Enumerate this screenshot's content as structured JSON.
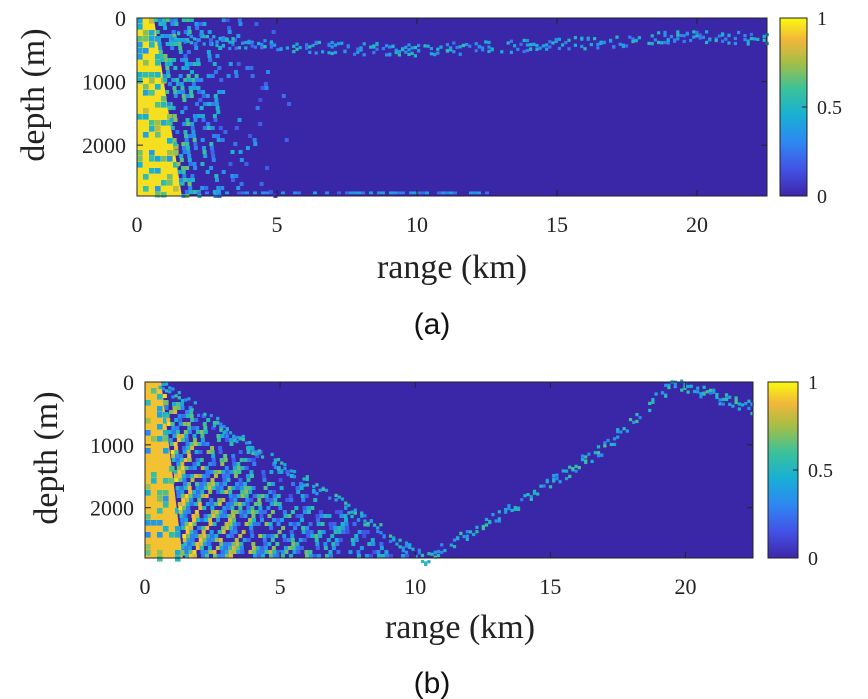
{
  "chart_data": [
    {
      "type": "heatmap",
      "panel_label": "(a)",
      "xlabel": "range (km)",
      "ylabel": "depth (m)",
      "xlim": [
        0,
        22.5
      ],
      "ylim": [
        2800,
        0
      ],
      "xticks": [
        0,
        5,
        10,
        15,
        20
      ],
      "yticks": [
        0,
        1000,
        2000
      ],
      "colorbar": {
        "min": 0,
        "max": 1,
        "ticks": [
          0,
          0.5,
          1
        ],
        "colormap": "parula"
      },
      "background_value": 0,
      "features": [
        {
          "kind": "bright_wedge",
          "surface_range_km": [
            0,
            0.6
          ],
          "bottom_range_km": [
            0,
            1.6
          ],
          "value": 0.95
        },
        {
          "kind": "speckled_fan",
          "from_range_km": 0.5,
          "to_range_km": 5.5,
          "value": 0.35
        },
        {
          "kind": "beam_ridge",
          "points_km_m": [
            [
              1.2,
              280
            ],
            [
              5,
              430
            ],
            [
              10,
              480
            ],
            [
              15,
              390
            ],
            [
              20,
              260
            ],
            [
              22.5,
              310
            ]
          ],
          "value": 0.4
        },
        {
          "kind": "bottom_trace",
          "from_range_km": 2,
          "to_range_km": 12.5,
          "depth_m": 2760,
          "value": 0.3
        }
      ]
    },
    {
      "type": "heatmap",
      "panel_label": "(b)",
      "xlabel": "range (km)",
      "ylabel": "depth (m)",
      "xlim": [
        0,
        22.5
      ],
      "ylim": [
        2800,
        0
      ],
      "xticks": [
        0,
        5,
        10,
        15,
        20
      ],
      "yticks": [
        0,
        1000,
        2000
      ],
      "colorbar": {
        "min": 0,
        "max": 1,
        "ticks": [
          0,
          0.5,
          1
        ],
        "colormap": "parula"
      },
      "background_value": 0,
      "features": [
        {
          "kind": "bright_wedge",
          "surface_range_km": [
            0,
            0.6
          ],
          "bottom_range_km": [
            0,
            1.4
          ],
          "value": 0.9
        },
        {
          "kind": "interference_fan",
          "upper_edge_km_m": [
            [
              0,
              0
            ],
            [
              2,
              460
            ],
            [
              4,
              1000
            ],
            [
              6,
              1650
            ],
            [
              8,
              2300
            ],
            [
              10,
              2780
            ]
          ],
          "value": 0.55
        },
        {
          "kind": "beam_ridge",
          "points_km_m": [
            [
              0.5,
              0
            ],
            [
              4,
              1050
            ],
            [
              7,
              1850
            ],
            [
              10.3,
              2800
            ],
            [
              13.5,
              2000
            ],
            [
              17,
              1000
            ],
            [
              19.5,
              0
            ],
            [
              22.5,
              400
            ]
          ],
          "value": 0.45
        }
      ]
    }
  ]
}
